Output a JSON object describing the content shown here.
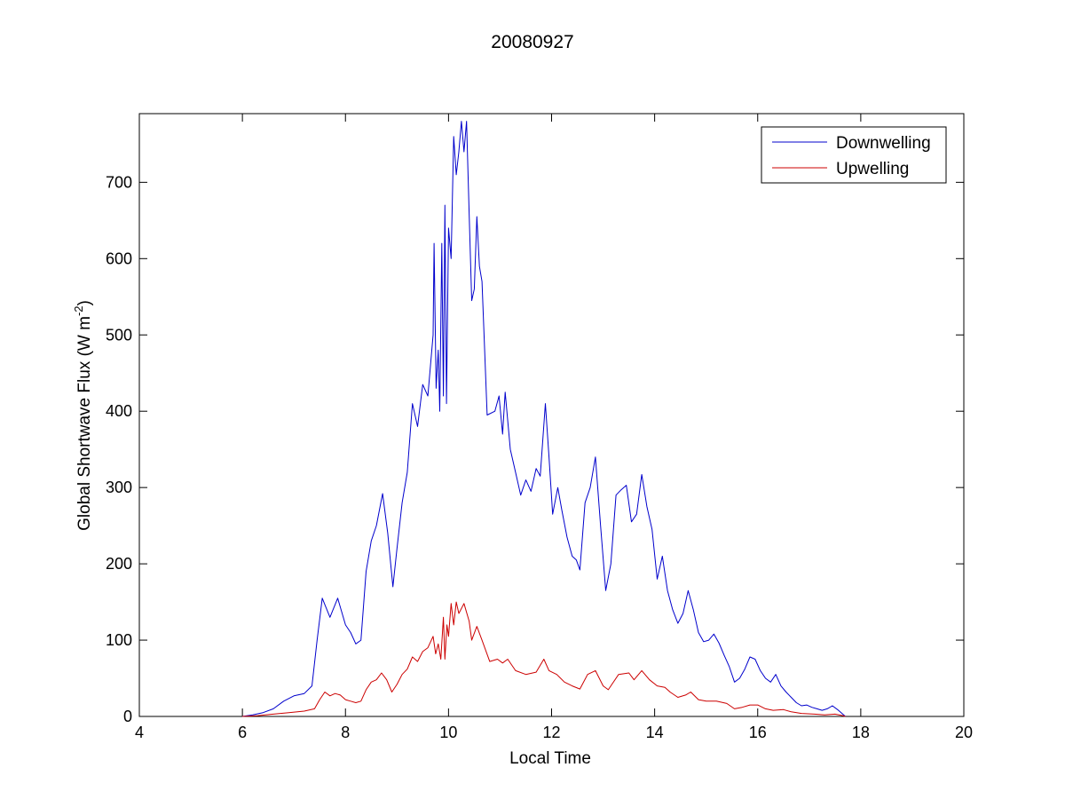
{
  "chart_data": {
    "type": "line",
    "title": "20080927",
    "xlabel": "Local Time",
    "ylabel_main": "Global Shortwave Flux (W m",
    "ylabel_sup": "-2",
    "ylabel_close": ")",
    "xlim": [
      4,
      20
    ],
    "ylim": [
      0,
      790
    ],
    "xticks": [
      4,
      6,
      8,
      10,
      12,
      14,
      16,
      18,
      20
    ],
    "yticks": [
      0,
      100,
      200,
      300,
      400,
      500,
      600,
      700
    ],
    "grid": false,
    "legend_position": "top-right",
    "series": [
      {
        "name": "Downwelling",
        "color": "#0000cc",
        "points": [
          [
            6.0,
            0
          ],
          [
            6.2,
            2
          ],
          [
            6.4,
            5
          ],
          [
            6.6,
            10
          ],
          [
            6.8,
            20
          ],
          [
            7.0,
            27
          ],
          [
            7.2,
            30
          ],
          [
            7.35,
            40
          ],
          [
            7.45,
            100
          ],
          [
            7.55,
            155
          ],
          [
            7.7,
            130
          ],
          [
            7.85,
            155
          ],
          [
            8.0,
            120
          ],
          [
            8.1,
            110
          ],
          [
            8.2,
            95
          ],
          [
            8.3,
            100
          ],
          [
            8.4,
            190
          ],
          [
            8.5,
            230
          ],
          [
            8.6,
            250
          ],
          [
            8.72,
            292
          ],
          [
            8.82,
            240
          ],
          [
            8.92,
            170
          ],
          [
            9.0,
            220
          ],
          [
            9.1,
            280
          ],
          [
            9.2,
            320
          ],
          [
            9.3,
            410
          ],
          [
            9.4,
            380
          ],
          [
            9.5,
            435
          ],
          [
            9.6,
            420
          ],
          [
            9.7,
            500
          ],
          [
            9.72,
            620
          ],
          [
            9.76,
            430
          ],
          [
            9.8,
            480
          ],
          [
            9.83,
            400
          ],
          [
            9.87,
            620
          ],
          [
            9.9,
            420
          ],
          [
            9.93,
            670
          ],
          [
            9.96,
            410
          ],
          [
            10.0,
            640
          ],
          [
            10.05,
            600
          ],
          [
            10.1,
            760
          ],
          [
            10.15,
            710
          ],
          [
            10.2,
            740
          ],
          [
            10.25,
            780
          ],
          [
            10.3,
            740
          ],
          [
            10.35,
            780
          ],
          [
            10.4,
            660
          ],
          [
            10.45,
            545
          ],
          [
            10.5,
            560
          ],
          [
            10.55,
            655
          ],
          [
            10.6,
            590
          ],
          [
            10.65,
            570
          ],
          [
            10.75,
            395
          ],
          [
            10.9,
            400
          ],
          [
            10.98,
            420
          ],
          [
            11.05,
            370
          ],
          [
            11.1,
            425
          ],
          [
            11.2,
            350
          ],
          [
            11.3,
            320
          ],
          [
            11.4,
            290
          ],
          [
            11.5,
            310
          ],
          [
            11.6,
            295
          ],
          [
            11.7,
            325
          ],
          [
            11.78,
            315
          ],
          [
            11.88,
            410
          ],
          [
            11.95,
            340
          ],
          [
            12.02,
            265
          ],
          [
            12.12,
            300
          ],
          [
            12.2,
            270
          ],
          [
            12.3,
            235
          ],
          [
            12.4,
            210
          ],
          [
            12.48,
            205
          ],
          [
            12.55,
            192
          ],
          [
            12.65,
            280
          ],
          [
            12.75,
            300
          ],
          [
            12.85,
            340
          ],
          [
            12.95,
            250
          ],
          [
            13.05,
            165
          ],
          [
            13.15,
            200
          ],
          [
            13.25,
            290
          ],
          [
            13.35,
            297
          ],
          [
            13.45,
            303
          ],
          [
            13.55,
            255
          ],
          [
            13.65,
            265
          ],
          [
            13.75,
            317
          ],
          [
            13.85,
            275
          ],
          [
            13.95,
            245
          ],
          [
            14.05,
            180
          ],
          [
            14.15,
            210
          ],
          [
            14.25,
            165
          ],
          [
            14.35,
            140
          ],
          [
            14.45,
            122
          ],
          [
            14.55,
            135
          ],
          [
            14.65,
            165
          ],
          [
            14.75,
            140
          ],
          [
            14.85,
            110
          ],
          [
            14.95,
            98
          ],
          [
            15.05,
            100
          ],
          [
            15.15,
            108
          ],
          [
            15.25,
            96
          ],
          [
            15.35,
            80
          ],
          [
            15.45,
            65
          ],
          [
            15.55,
            45
          ],
          [
            15.65,
            50
          ],
          [
            15.75,
            62
          ],
          [
            15.85,
            78
          ],
          [
            15.95,
            75
          ],
          [
            16.05,
            60
          ],
          [
            16.15,
            50
          ],
          [
            16.25,
            45
          ],
          [
            16.35,
            55
          ],
          [
            16.45,
            40
          ],
          [
            16.55,
            32
          ],
          [
            16.65,
            25
          ],
          [
            16.75,
            18
          ],
          [
            16.85,
            14
          ],
          [
            16.95,
            15
          ],
          [
            17.05,
            12
          ],
          [
            17.15,
            10
          ],
          [
            17.25,
            8
          ],
          [
            17.35,
            10
          ],
          [
            17.45,
            14
          ],
          [
            17.55,
            9
          ],
          [
            17.65,
            3
          ],
          [
            17.7,
            0
          ]
        ]
      },
      {
        "name": "Upwelling",
        "color": "#cc0000",
        "points": [
          [
            6.0,
            0
          ],
          [
            6.3,
            1
          ],
          [
            6.6,
            3
          ],
          [
            6.9,
            5
          ],
          [
            7.2,
            7
          ],
          [
            7.4,
            10
          ],
          [
            7.5,
            22
          ],
          [
            7.6,
            32
          ],
          [
            7.7,
            27
          ],
          [
            7.8,
            30
          ],
          [
            7.9,
            28
          ],
          [
            8.0,
            22
          ],
          [
            8.1,
            20
          ],
          [
            8.2,
            18
          ],
          [
            8.3,
            20
          ],
          [
            8.4,
            35
          ],
          [
            8.5,
            45
          ],
          [
            8.6,
            48
          ],
          [
            8.7,
            57
          ],
          [
            8.8,
            48
          ],
          [
            8.9,
            32
          ],
          [
            9.0,
            42
          ],
          [
            9.1,
            55
          ],
          [
            9.2,
            62
          ],
          [
            9.3,
            78
          ],
          [
            9.4,
            72
          ],
          [
            9.5,
            85
          ],
          [
            9.6,
            90
          ],
          [
            9.7,
            105
          ],
          [
            9.75,
            82
          ],
          [
            9.8,
            95
          ],
          [
            9.85,
            75
          ],
          [
            9.9,
            130
          ],
          [
            9.93,
            75
          ],
          [
            9.97,
            120
          ],
          [
            10.0,
            105
          ],
          [
            10.05,
            148
          ],
          [
            10.1,
            120
          ],
          [
            10.15,
            150
          ],
          [
            10.2,
            135
          ],
          [
            10.3,
            148
          ],
          [
            10.4,
            125
          ],
          [
            10.45,
            100
          ],
          [
            10.55,
            118
          ],
          [
            10.65,
            100
          ],
          [
            10.8,
            72
          ],
          [
            10.95,
            75
          ],
          [
            11.05,
            70
          ],
          [
            11.15,
            75
          ],
          [
            11.3,
            60
          ],
          [
            11.5,
            55
          ],
          [
            11.7,
            58
          ],
          [
            11.85,
            75
          ],
          [
            11.95,
            60
          ],
          [
            12.1,
            55
          ],
          [
            12.25,
            45
          ],
          [
            12.4,
            40
          ],
          [
            12.55,
            36
          ],
          [
            12.7,
            55
          ],
          [
            12.85,
            60
          ],
          [
            13.0,
            40
          ],
          [
            13.1,
            35
          ],
          [
            13.3,
            55
          ],
          [
            13.5,
            57
          ],
          [
            13.6,
            48
          ],
          [
            13.75,
            60
          ],
          [
            13.9,
            48
          ],
          [
            14.05,
            40
          ],
          [
            14.2,
            38
          ],
          [
            14.3,
            32
          ],
          [
            14.45,
            25
          ],
          [
            14.6,
            28
          ],
          [
            14.7,
            32
          ],
          [
            14.85,
            22
          ],
          [
            15.0,
            20
          ],
          [
            15.2,
            20
          ],
          [
            15.4,
            17
          ],
          [
            15.55,
            10
          ],
          [
            15.7,
            12
          ],
          [
            15.85,
            15
          ],
          [
            16.0,
            15
          ],
          [
            16.15,
            10
          ],
          [
            16.3,
            8
          ],
          [
            16.5,
            9
          ],
          [
            16.65,
            6
          ],
          [
            16.85,
            4
          ],
          [
            17.1,
            3
          ],
          [
            17.3,
            2
          ],
          [
            17.5,
            3
          ],
          [
            17.65,
            1
          ],
          [
            17.7,
            0
          ]
        ]
      }
    ]
  }
}
